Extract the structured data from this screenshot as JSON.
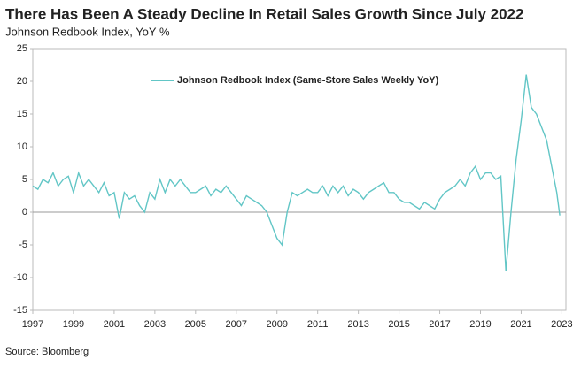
{
  "chart_data": {
    "type": "line",
    "title": "There Has Been A Steady Decline In Retail Sales Growth Since July 2022",
    "subtitle": "Johnson Redbook Index, YoY %",
    "source": "Source: Bloomberg",
    "x": [
      1997,
      1997.25,
      1997.5,
      1997.75,
      1998,
      1998.25,
      1998.5,
      1998.75,
      1999,
      1999.25,
      1999.5,
      1999.75,
      2000,
      2000.25,
      2000.5,
      2000.75,
      2001,
      2001.25,
      2001.5,
      2001.75,
      2002,
      2002.25,
      2002.5,
      2002.75,
      2003,
      2003.25,
      2003.5,
      2003.75,
      2004,
      2004.25,
      2004.5,
      2004.75,
      2005,
      2005.25,
      2005.5,
      2005.75,
      2006,
      2006.25,
      2006.5,
      2006.75,
      2007,
      2007.25,
      2007.5,
      2007.75,
      2008,
      2008.25,
      2008.5,
      2008.75,
      2009,
      2009.25,
      2009.5,
      2009.75,
      2010,
      2010.25,
      2010.5,
      2010.75,
      2011,
      2011.25,
      2011.5,
      2011.75,
      2012,
      2012.25,
      2012.5,
      2012.75,
      2013,
      2013.25,
      2013.5,
      2013.75,
      2014,
      2014.25,
      2014.5,
      2014.75,
      2015,
      2015.25,
      2015.5,
      2015.75,
      2016,
      2016.25,
      2016.5,
      2016.75,
      2017,
      2017.25,
      2017.5,
      2017.75,
      2018,
      2018.25,
      2018.5,
      2018.75,
      2019,
      2019.25,
      2019.5,
      2019.75,
      2020,
      2020.25,
      2020.5,
      2020.75,
      2021,
      2021.25,
      2021.5,
      2021.75,
      2022,
      2022.25,
      2022.5,
      2022.75,
      2022.9
    ],
    "series": [
      {
        "name": "Johnson Redbook Index (Same-Store Sales Weekly YoY)",
        "color": "#62c6c6",
        "values": [
          4,
          3.5,
          5,
          4.5,
          6,
          4,
          5,
          5.5,
          3,
          6,
          4,
          5,
          4,
          3,
          4.5,
          2.5,
          3,
          -1,
          3,
          2,
          2.5,
          1,
          0,
          3,
          2,
          5,
          3,
          5,
          4,
          5,
          4,
          3,
          3,
          3.5,
          4,
          2.5,
          3.5,
          3,
          4,
          3,
          2,
          1,
          2.5,
          2,
          1.5,
          1,
          0,
          -2,
          -4,
          -5,
          0,
          3,
          2.5,
          3,
          3.5,
          3,
          3,
          4,
          2.5,
          4,
          3,
          4,
          2.5,
          3.5,
          3,
          2,
          3,
          3.5,
          4,
          4.5,
          3,
          3,
          2,
          1.5,
          1.5,
          1,
          0.5,
          1.5,
          1,
          0.5,
          2,
          3,
          3.5,
          4,
          5,
          4,
          6,
          7,
          5,
          6,
          6,
          5,
          5.5,
          -9,
          0,
          8,
          14,
          21,
          16,
          15,
          13,
          11,
          7,
          3,
          -0.5
        ]
      }
    ],
    "xlim": [
      1997,
      2023.2
    ],
    "ylim": [
      -15,
      25
    ],
    "xticks": [
      1997,
      1999,
      2001,
      2003,
      2005,
      2007,
      2009,
      2011,
      2013,
      2015,
      2017,
      2019,
      2021,
      2023
    ],
    "yticks": [
      -15,
      -10,
      -5,
      0,
      5,
      10,
      15,
      20,
      25
    ]
  }
}
